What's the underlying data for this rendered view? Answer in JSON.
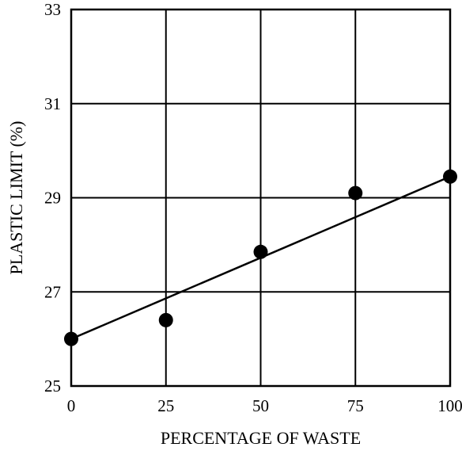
{
  "chart_data": {
    "type": "scatter",
    "title": "",
    "xlabel": "PERCENTAGE OF WASTE",
    "ylabel": "PLASTIC LIMIT (%)",
    "xlim": [
      0,
      100
    ],
    "ylim": [
      25,
      33
    ],
    "x_ticks": [
      0,
      25,
      50,
      75,
      100
    ],
    "y_ticks": [
      25,
      27,
      29,
      31,
      33
    ],
    "x_tick_labels": [
      "0",
      "25",
      "50",
      "75",
      "100"
    ],
    "y_tick_labels": [
      "25",
      "27",
      "29",
      "31",
      "33"
    ],
    "grid": true,
    "series": [
      {
        "type": "scatter",
        "x": [
          0,
          25,
          50,
          75,
          100
        ],
        "y": [
          26.0,
          26.4,
          27.85,
          29.1,
          29.45
        ]
      },
      {
        "type": "line",
        "x": [
          0,
          100
        ],
        "y": [
          26.0,
          29.45
        ]
      }
    ],
    "colors": {
      "axis": "#000000",
      "grid": "#000000",
      "marker": "#000000",
      "line": "#000000"
    }
  }
}
